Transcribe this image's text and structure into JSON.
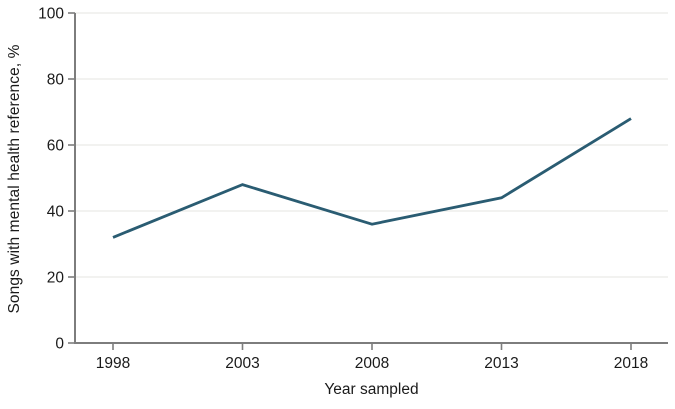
{
  "chart_data": {
    "type": "line",
    "title": "",
    "xlabel": "Year sampled",
    "ylabel": "Songs with mental health reference, %",
    "categories": [
      "1998",
      "2003",
      "2008",
      "2013",
      "2018"
    ],
    "series": [
      {
        "name": "Songs with mental health reference",
        "values": [
          32,
          48,
          36,
          44,
          68
        ]
      }
    ],
    "ylim": [
      0,
      100
    ],
    "yticks": [
      0,
      20,
      40,
      60,
      80,
      100
    ],
    "grid": "horizontal-only",
    "legend": "none",
    "colors": {
      "line": "#2a5c72",
      "axis": "#7d7d7d",
      "gridline": "#e9e9e6",
      "text": "#1a1a1a"
    }
  }
}
